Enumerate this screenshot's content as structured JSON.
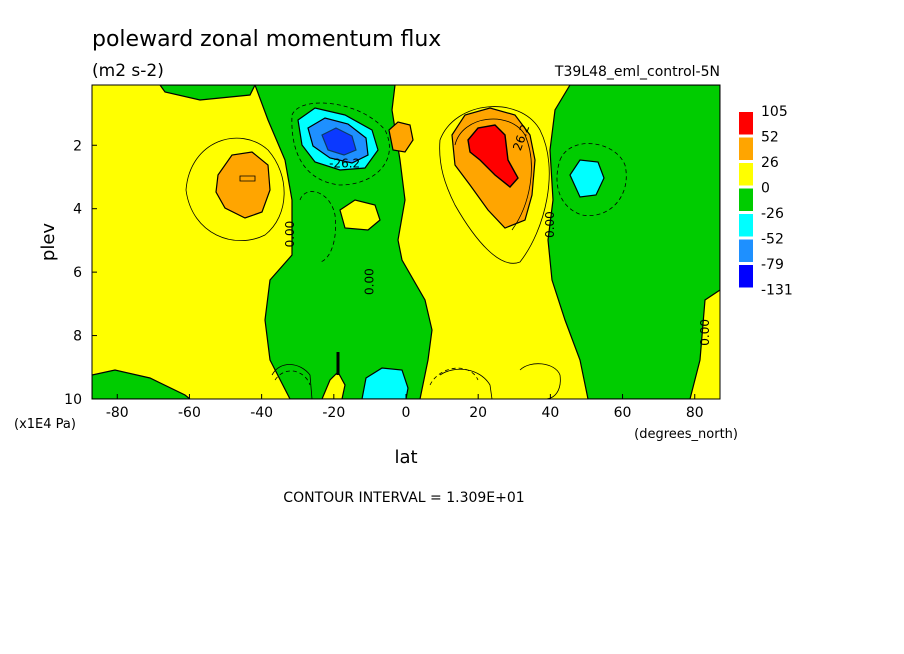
{
  "chart_data": {
    "type": "heatmap",
    "title": "poleward zonal momentum flux",
    "units": "(m2 s-2)",
    "dataset": "T39L48_eml_control-5N",
    "xlabel": "lat",
    "x_units": "(degrees_north)",
    "ylabel": "plev",
    "y_units": "(x1E4 Pa)",
    "xlim": [
      -87,
      87
    ],
    "ylim": [
      10,
      0.1
    ],
    "x_ticks": [
      {
        "value": -80,
        "label": "-80"
      },
      {
        "value": -60,
        "label": "-60"
      },
      {
        "value": -40,
        "label": "-40"
      },
      {
        "value": -20,
        "label": "-20"
      },
      {
        "value": 0,
        "label": "0"
      },
      {
        "value": 20,
        "label": "20"
      },
      {
        "value": 40,
        "label": "40"
      },
      {
        "value": 60,
        "label": "60"
      },
      {
        "value": 80,
        "label": "80"
      }
    ],
    "y_ticks": [
      {
        "value": 2,
        "label": "2"
      },
      {
        "value": 4,
        "label": "4"
      },
      {
        "value": 6,
        "label": "6"
      },
      {
        "value": 8,
        "label": "8"
      },
      {
        "value": 10,
        "label": "10"
      }
    ],
    "footer": "CONTOUR INTERVAL = 1.309E+01",
    "contour_labels": [
      {
        "text": "-26.2",
        "lat": -17,
        "plev": 2.7
      },
      {
        "text": "0.00",
        "lat": -31,
        "plev": 4.8
      },
      {
        "text": "0.00",
        "lat": -9,
        "plev": 6.3
      },
      {
        "text": "26.2",
        "lat": 33,
        "plev": 1.8
      },
      {
        "text": "0.00",
        "lat": 41,
        "plev": 4.5
      },
      {
        "text": "0.00",
        "lat": 84,
        "plev": 7.9
      }
    ],
    "colorbar": {
      "colors": [
        "#ff0000",
        "#ffa500",
        "#ffff00",
        "#00cc00",
        "#00ffff",
        "#1e90ff",
        "#0000ff"
      ],
      "labels": [
        "105",
        "52",
        "26",
        "0",
        "-26",
        "-52",
        "-79",
        "-131"
      ]
    },
    "features": [
      {
        "kind": "max",
        "lat": 22,
        "plev": 2.0,
        "approx_value": 105
      },
      {
        "kind": "max",
        "lat": -45,
        "plev": 3.0,
        "approx_value": 40
      },
      {
        "kind": "max",
        "lat": -2,
        "plev": 1.8,
        "approx_value": 30
      },
      {
        "kind": "min",
        "lat": -19,
        "plev": 1.9,
        "approx_value": -85
      },
      {
        "kind": "min",
        "lat": 50,
        "plev": 3.0,
        "approx_value": -40
      },
      {
        "kind": "min",
        "lat": -7,
        "plev": 9.6,
        "approx_value": -40
      }
    ]
  }
}
